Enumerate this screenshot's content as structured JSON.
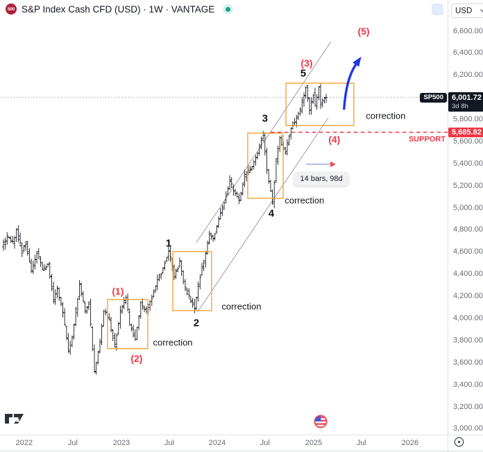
{
  "header": {
    "badge": "500",
    "title": "S&P Index Cash CFD (USD) · 1W · VANTAGE"
  },
  "toolbar": {
    "currency": "USD"
  },
  "price_axis": {
    "current": {
      "symbol": "SP500",
      "price": "6,001.72",
      "countdown": "3d 8h"
    },
    "support": {
      "price": "5,685.82"
    },
    "ticks": [
      {
        "label": "6,600.00",
        "value": 6600
      },
      {
        "label": "6,400.00",
        "value": 6400
      },
      {
        "label": "6,200.00",
        "value": 6200
      },
      {
        "label": "5,800.00",
        "value": 5800
      },
      {
        "label": "5,600.00",
        "value": 5600
      },
      {
        "label": "5,400.00",
        "value": 5400
      },
      {
        "label": "5,200.00",
        "value": 5200
      },
      {
        "label": "5,000.00",
        "value": 5000
      },
      {
        "label": "4,800.00",
        "value": 4800
      },
      {
        "label": "4,600.00",
        "value": 4600
      },
      {
        "label": "4,400.00",
        "value": 4400
      },
      {
        "label": "4,200.00",
        "value": 4200
      },
      {
        "label": "4,000.00",
        "value": 4000
      },
      {
        "label": "3,800.00",
        "value": 3800
      },
      {
        "label": "3,600.00",
        "value": 3600
      },
      {
        "label": "3,400.00",
        "value": 3400
      },
      {
        "label": "3,200.00",
        "value": 3200
      },
      {
        "label": "3,000.00",
        "value": 3000
      }
    ]
  },
  "time_axis": {
    "ticks": [
      {
        "label": "2022",
        "week": 11.2
      },
      {
        "label": "Jul",
        "week": 37.4
      },
      {
        "label": "2023",
        "week": 63.6
      },
      {
        "label": "Jul",
        "week": 89.4
      },
      {
        "label": "2024",
        "week": 115.2
      },
      {
        "label": "Jul",
        "week": 141.0
      },
      {
        "label": "2025",
        "week": 167.2
      },
      {
        "label": "Jul",
        "week": 193.0
      },
      {
        "label": "2026",
        "week": 219.2
      }
    ]
  },
  "chart_data": {
    "type": "ohlc-bar",
    "title": "S&P Index Cash CFD (USD)",
    "timeframe": "1W",
    "grid": "off",
    "y_domain": [
      3000,
      6600
    ],
    "x_domain_weeks": [
      0,
      241
    ],
    "current_price": 6001.72,
    "support_level": 5685.82,
    "support_text": "SUPPORT",
    "weekly_path_anchors": [
      [
        0,
        4650
      ],
      [
        3,
        4730
      ],
      [
        6,
        4690
      ],
      [
        8,
        4790
      ],
      [
        11,
        4610
      ],
      [
        13,
        4680
      ],
      [
        16,
        4430
      ],
      [
        19,
        4600
      ],
      [
        22,
        4450
      ],
      [
        25,
        4490
      ],
      [
        28,
        4170
      ],
      [
        30,
        4270
      ],
      [
        33,
        4060
      ],
      [
        36,
        3700
      ],
      [
        38,
        3840
      ],
      [
        42,
        4300
      ],
      [
        45,
        4060
      ],
      [
        47,
        4140
      ],
      [
        50,
        3520
      ],
      [
        53,
        3780
      ],
      [
        55,
        4080
      ],
      [
        58,
        3980
      ],
      [
        61,
        3760
      ],
      [
        64,
        4070
      ],
      [
        67,
        4190
      ],
      [
        69,
        3950
      ],
      [
        72,
        3800
      ],
      [
        75,
        4130
      ],
      [
        78,
        4080
      ],
      [
        81,
        4190
      ],
      [
        84,
        4350
      ],
      [
        87,
        4450
      ],
      [
        90,
        4620
      ],
      [
        93,
        4380
      ],
      [
        96,
        4510
      ],
      [
        98,
        4330
      ],
      [
        101,
        4190
      ],
      [
        104,
        4100
      ],
      [
        107,
        4390
      ],
      [
        110,
        4580
      ],
      [
        112,
        4770
      ],
      [
        114,
        4720
      ],
      [
        117,
        4900
      ],
      [
        120,
        5060
      ],
      [
        123,
        5240
      ],
      [
        126,
        5130
      ],
      [
        128,
        5060
      ],
      [
        131,
        5300
      ],
      [
        134,
        5350
      ],
      [
        137,
        5460
      ],
      [
        139,
        5560
      ],
      [
        141,
        5670
      ],
      [
        143,
        5330
      ],
      [
        146,
        5060
      ],
      [
        148,
        5430
      ],
      [
        150,
        5620
      ],
      [
        153,
        5510
      ],
      [
        156,
        5730
      ],
      [
        158,
        5790
      ],
      [
        161,
        5890
      ],
      [
        164,
        6100
      ],
      [
        166,
        5880
      ],
      [
        168,
        6030
      ],
      [
        169,
        5920
      ],
      [
        171,
        6090
      ],
      [
        172,
        5950
      ],
      [
        174,
        6002
      ]
    ],
    "channel": {
      "upper": {
        "from": [
          104.0,
          4687
        ],
        "to": [
          176.6,
          6506
        ]
      },
      "lower": {
        "from": [
          104.7,
          4060
        ],
        "to": [
          175.1,
          5816
        ]
      }
    },
    "boxes": [
      {
        "name": "correction-wave-2-circle",
        "w1": 56.1,
        "p1": 4173,
        "w2": 77.8,
        "p2": 3728
      },
      {
        "name": "correction-wave-2",
        "w1": 91.3,
        "p1": 4606,
        "w2": 112.2,
        "p2": 4072
      },
      {
        "name": "correction-wave-4",
        "w1": 131.7,
        "p1": 5678,
        "w2": 150.8,
        "p2": 5088
      },
      {
        "name": "correction-wave-4-circle",
        "w1": 152.3,
        "p1": 6130,
        "w2": 188.9,
        "p2": 5747
      }
    ],
    "wave_labels": [
      {
        "text": "(1)",
        "week": 61.7,
        "price": 4248,
        "style": "red"
      },
      {
        "text": "(2)",
        "week": 71.8,
        "price": 3640,
        "style": "red"
      },
      {
        "text": "1",
        "week": 89.0,
        "price": 4681,
        "style": "black"
      },
      {
        "text": "2",
        "week": 104.0,
        "price": 3959,
        "style": "black"
      },
      {
        "text": "3",
        "week": 141.0,
        "price": 5810,
        "style": "black"
      },
      {
        "text": "4",
        "week": 144.4,
        "price": 4950,
        "style": "black"
      },
      {
        "text": "5",
        "week": 161.6,
        "price": 6218,
        "style": "black"
      },
      {
        "text": "(3)",
        "week": 163.5,
        "price": 6311,
        "style": "red"
      },
      {
        "text": "(4)",
        "week": 178.4,
        "price": 5622,
        "style": "red"
      },
      {
        "text": "(5)",
        "week": 194.2,
        "price": 6600,
        "style": "red"
      }
    ],
    "correction_labels": [
      {
        "text": "correction",
        "week": 91.3,
        "price": 3784
      },
      {
        "text": "correction",
        "week": 128.3,
        "price": 4110
      },
      {
        "text": "correction",
        "week": 162.3,
        "price": 5070
      },
      {
        "text": "correction",
        "week": 206.1,
        "price": 5835
      }
    ],
    "impulse_arrow": {
      "from": [
        183.6,
        5890
      ],
      "to": [
        192.9,
        6370
      ]
    },
    "measure": {
      "label": "14 bars, 98d",
      "from": [
        163.1,
        5396
      ],
      "to": [
        179.2,
        5396
      ],
      "label_at": [
        171.4,
        5264
      ]
    },
    "support_line": {
      "from_week": 144.0,
      "price": 5685.82
    }
  },
  "colors": {
    "bar": "#15171c",
    "box_orange": "#f7a232",
    "wave_red": "#f23645",
    "arrow_blue": "#2039e0",
    "channel_gray": "#a2a5ad",
    "support_red": "#f23645",
    "current_line_gray": "#90939b",
    "measure_shaft": "#b9c3e6",
    "measure_head": "#ef5350"
  }
}
